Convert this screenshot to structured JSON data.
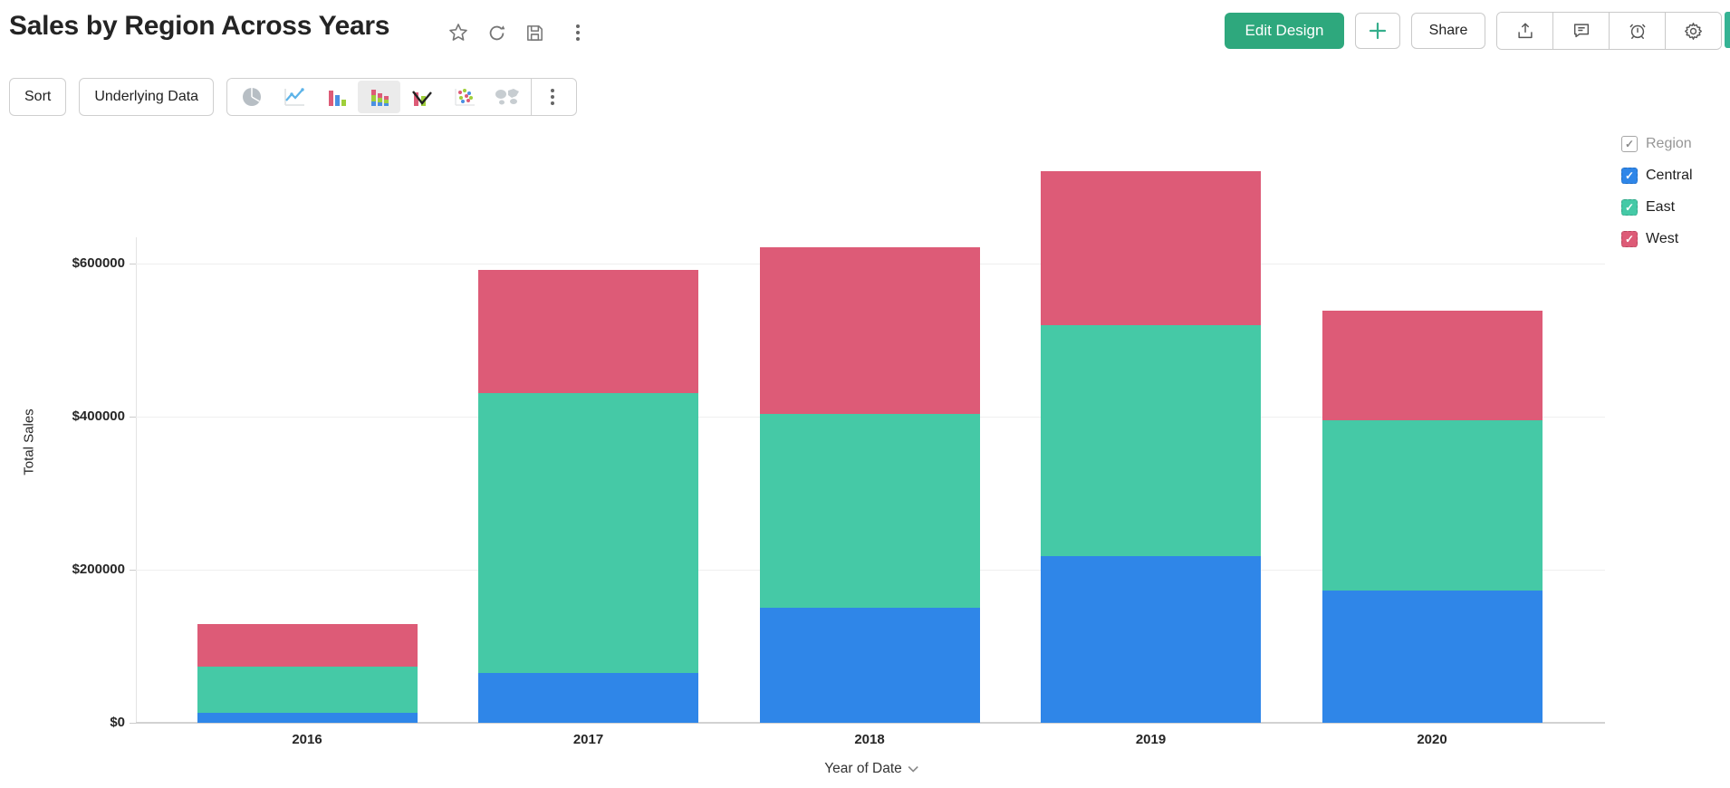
{
  "header": {
    "title": "Sales by Region Across Years",
    "action_icons": [
      "star-icon",
      "refresh-icon",
      "save-icon",
      "more-options-icon"
    ],
    "edit_design_label": "Edit Design",
    "add_label": "+",
    "share_label": "Share",
    "right_icons": [
      "export-icon",
      "comment-icon",
      "alerts-icon",
      "settings-gear-icon"
    ],
    "accent_color": "#2EA87D"
  },
  "toolbar": {
    "sort_label": "Sort",
    "underlying_data_label": "Underlying Data",
    "chart_types": [
      "pie-chart",
      "line-chart",
      "bar-chart",
      "stacked-bar-chart",
      "combo-chart",
      "scatter-chart",
      "map-chart"
    ],
    "selected_chart_type": "stacked-bar-chart",
    "more_icon": "more-options-icon"
  },
  "legend": {
    "title": "Region",
    "title_checked": true,
    "items": [
      {
        "label": "Central",
        "color": "#2F86E8",
        "checked": true
      },
      {
        "label": "East",
        "color": "#45C9A6",
        "checked": true
      },
      {
        "label": "West",
        "color": "#DD5B77",
        "checked": true
      }
    ]
  },
  "chart_data": {
    "type": "bar",
    "stacked": true,
    "title": "Sales by Region Across Years",
    "xlabel": "Year of Date",
    "ylabel": "Total Sales",
    "categories": [
      "2016",
      "2017",
      "2018",
      "2019",
      "2020"
    ],
    "series": [
      {
        "name": "Central",
        "color": "#2F86E8",
        "values": [
          13000,
          65000,
          150000,
          218000,
          173000
        ]
      },
      {
        "name": "East",
        "color": "#45C9A6",
        "values": [
          60000,
          366000,
          253000,
          302000,
          222000
        ]
      },
      {
        "name": "West",
        "color": "#DD5B77",
        "values": [
          56000,
          161000,
          218000,
          201000,
          143000
        ]
      }
    ],
    "totals": [
      129000,
      592000,
      621000,
      721000,
      538000
    ],
    "y_tick_labels": [
      "$0",
      "$200000",
      "$400000",
      "$600000"
    ],
    "y_tick_values": [
      0,
      200000,
      400000,
      600000
    ],
    "ylim": [
      0,
      750000
    ],
    "grid": "horizontal",
    "legend_position": "right",
    "currency": "$"
  }
}
